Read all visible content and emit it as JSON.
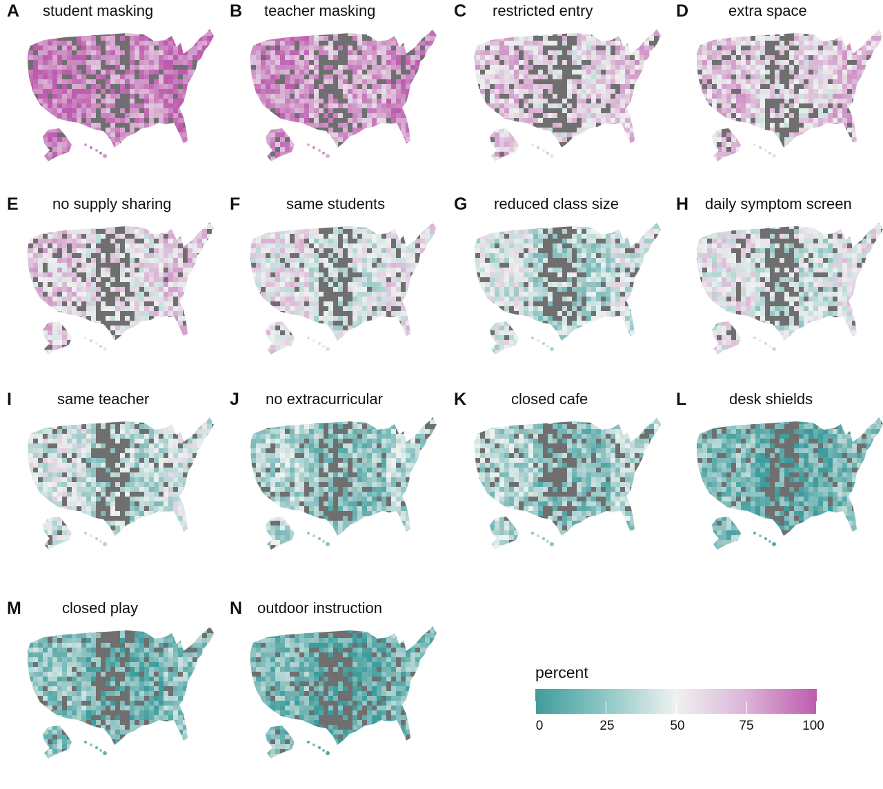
{
  "colors": {
    "low": "#3f9c9c",
    "mid": "#eef2f0",
    "high": "#bd5cae",
    "missing": "#6f6f6f"
  },
  "panels": [
    {
      "letter": "A",
      "title": "student masking",
      "level": 85
    },
    {
      "letter": "B",
      "title": "teacher masking",
      "level": 78
    },
    {
      "letter": "C",
      "title": "restricted entry",
      "level": 60
    },
    {
      "letter": "D",
      "title": "extra space",
      "level": 60
    },
    {
      "letter": "E",
      "title": "no supply sharing",
      "level": 58
    },
    {
      "letter": "F",
      "title": "same students",
      "level": 48
    },
    {
      "letter": "G",
      "title": "reduced class size",
      "level": 38
    },
    {
      "letter": "H",
      "title": "daily symptom screen",
      "level": 45
    },
    {
      "letter": "I",
      "title": "same teacher",
      "level": 38
    },
    {
      "letter": "J",
      "title": "no extracurricular",
      "level": 28
    },
    {
      "letter": "K",
      "title": "closed cafe",
      "level": 27
    },
    {
      "letter": "L",
      "title": "desk shields",
      "level": 15
    },
    {
      "letter": "M",
      "title": "closed play",
      "level": 18
    },
    {
      "letter": "N",
      "title": "outdoor instruction",
      "level": 13
    }
  ],
  "legend": {
    "title": "percent",
    "ticks": [
      "0",
      "25",
      "50",
      "75",
      "100"
    ],
    "tick_values": [
      0,
      25,
      50,
      75,
      100
    ]
  }
}
